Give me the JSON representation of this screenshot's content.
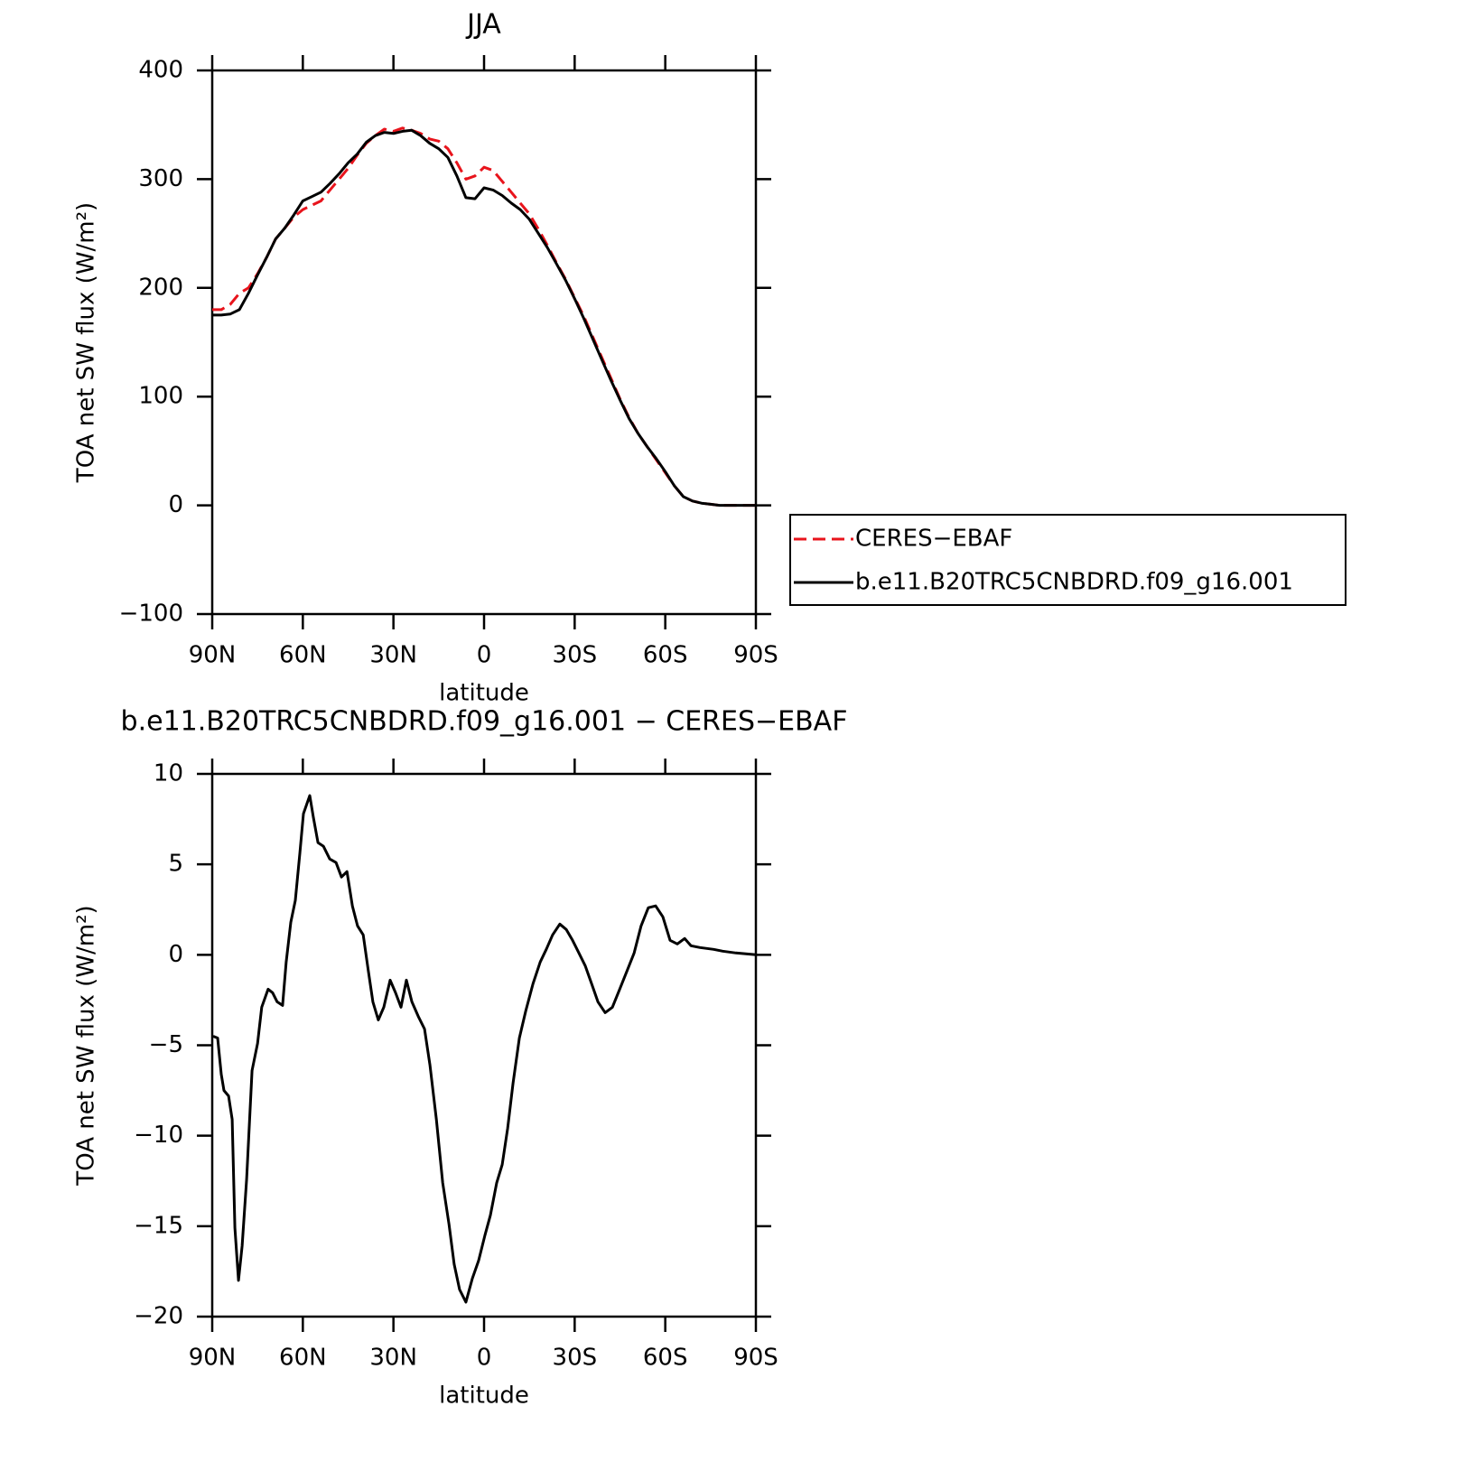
{
  "chart_data": [
    {
      "type": "line",
      "title": "JJA",
      "xlabel": "latitude",
      "ylabel": "TOA net SW flux (W/m²)",
      "x": [
        90,
        87,
        84,
        81,
        78,
        75,
        72,
        69,
        66,
        63,
        60,
        57,
        54,
        51,
        48,
        45,
        42,
        39,
        36,
        33,
        30,
        27,
        24,
        21,
        18,
        15,
        12,
        9,
        6,
        3,
        0,
        -3,
        -6,
        -9,
        -12,
        -15,
        -18,
        -21,
        -24,
        -27,
        -30,
        -33,
        -36,
        -39,
        -42,
        -45,
        -48,
        -51,
        -54,
        -57,
        -60,
        -63,
        -66,
        -69,
        -72,
        -75,
        -78,
        -81,
        -84,
        -87,
        -90
      ],
      "series": [
        {
          "name": "CERES−EBAF",
          "color": "#e8141c",
          "linestyle": "dashed",
          "values": [
            180,
            180,
            185,
            195,
            200,
            213,
            228,
            245,
            255,
            265,
            272,
            276,
            280,
            290,
            300,
            310,
            322,
            333,
            340,
            346,
            344,
            347,
            345,
            342,
            337,
            335,
            328,
            315,
            300,
            303,
            311,
            308,
            298,
            288,
            278,
            268,
            254,
            239,
            223,
            208,
            191,
            174,
            155,
            136,
            117,
            98,
            81,
            66,
            54,
            42,
            30,
            18,
            8,
            4,
            2,
            1,
            0,
            0,
            0,
            0,
            0
          ]
        },
        {
          "name": "b.e11.B20TRC5CNBDRD.f09_g16.001",
          "color": "#000000",
          "linestyle": "solid",
          "values": [
            175,
            175,
            176,
            180,
            195,
            212,
            228,
            245,
            255,
            267,
            280,
            284,
            288,
            296,
            305,
            315,
            323,
            334,
            340,
            343,
            342,
            344,
            345,
            340,
            333,
            328,
            320,
            303,
            283,
            282,
            292,
            290,
            285,
            278,
            272,
            263,
            250,
            237,
            222,
            207,
            190,
            172,
            153,
            134,
            115,
            97,
            80,
            66,
            54,
            43,
            31,
            18,
            8,
            4,
            2,
            1,
            0,
            0,
            0,
            0,
            0
          ]
        }
      ],
      "xlim": [
        90,
        -90
      ],
      "xticks": [
        {
          "value": 90,
          "label": "90N"
        },
        {
          "value": 60,
          "label": "60N"
        },
        {
          "value": 30,
          "label": "30N"
        },
        0,
        {
          "value": -30,
          "label": "30S"
        },
        {
          "value": -60,
          "label": "60S"
        },
        {
          "value": -90,
          "label": "90S"
        }
      ],
      "ylim": [
        -100,
        400
      ],
      "yticks": [
        {
          "value": -100,
          "label": "−100"
        },
        0,
        100,
        200,
        300,
        400
      ],
      "legend": "right"
    },
    {
      "type": "line",
      "title": "b.e11.B20TRC5CNBDRD.f09_g16.001 − CERES−EBAF",
      "xlabel": "latitude",
      "ylabel": "TOA net SW flux (W/m²)",
      "x": [
        89.7,
        88.2,
        87,
        86.1,
        84.6,
        83.4,
        82.5,
        81.3,
        80.1,
        78.6,
        76.8,
        75,
        73.6,
        71.5,
        70,
        68.5,
        66.7,
        65.5,
        64,
        62.5,
        61,
        59.8,
        57.7,
        56.5,
        55,
        53.2,
        51.1,
        49,
        47.2,
        45.4,
        43.6,
        41.9,
        40,
        38.3,
        36.8,
        35,
        33.2,
        31.1,
        29.3,
        27.5,
        25.7,
        23.9,
        21.8,
        19.7,
        17.9,
        15.8,
        13.7,
        11.6,
        9.9,
        8.1,
        6,
        3.9,
        1.8,
        -0.3,
        -2.1,
        -4.2,
        -6,
        -7.8,
        -9.6,
        -11.7,
        -13.8,
        -16.2,
        -18.6,
        -20.6,
        -22.7,
        -25.1,
        -27.2,
        -29.3,
        -31.4,
        -33.5,
        -35.6,
        -37.7,
        -40.1,
        -42.5,
        -44.9,
        -47.3,
        -49.7,
        -52,
        -54.4,
        -56.8,
        -59.2,
        -61.6,
        -64,
        -66.4,
        -68.5,
        -71.5,
        -76,
        -79,
        -83.4,
        -90
      ],
      "series": [
        {
          "color": "#000000",
          "linestyle": "solid",
          "values": [
            -4.5,
            -4.6,
            -6.6,
            -7.5,
            -7.8,
            -9.1,
            -15.1,
            -18,
            -16.1,
            -12.4,
            -6.4,
            -4.9,
            -2.9,
            -1.9,
            -2.1,
            -2.6,
            -2.8,
            -0.4,
            1.8,
            3,
            5.6,
            7.8,
            8.8,
            7.6,
            6.2,
            6,
            5.3,
            5.1,
            4.3,
            4.6,
            2.7,
            1.6,
            1.1,
            -0.9,
            -2.6,
            -3.6,
            -2.9,
            -1.4,
            -2.1,
            -2.9,
            -1.4,
            -2.6,
            -3.4,
            -4.1,
            -6.1,
            -9.1,
            -12.6,
            -14.9,
            -17.1,
            -18.5,
            -19.2,
            -17.9,
            -16.9,
            -15.5,
            -14.4,
            -12.6,
            -11.6,
            -9.6,
            -7.1,
            -4.6,
            -3.1,
            -1.6,
            -0.4,
            0.3,
            1.1,
            1.7,
            1.4,
            0.8,
            0.1,
            -0.6,
            -1.6,
            -2.6,
            -3.2,
            -2.9,
            -1.9,
            -0.9,
            0.1,
            1.6,
            2.6,
            2.7,
            2.1,
            0.8,
            0.6,
            0.9,
            0.5,
            0.4,
            0.3,
            0.2,
            0.1,
            0
          ]
        }
      ],
      "xlim": [
        90,
        -90
      ],
      "xticks": [
        {
          "value": 90,
          "label": "90N"
        },
        {
          "value": 60,
          "label": "60N"
        },
        {
          "value": 30,
          "label": "30N"
        },
        0,
        {
          "value": -30,
          "label": "30S"
        },
        {
          "value": -60,
          "label": "60S"
        },
        {
          "value": -90,
          "label": "90S"
        }
      ],
      "ylim": [
        -20,
        10
      ],
      "yticks": [
        {
          "value": -20,
          "label": "−20"
        },
        {
          "value": -15,
          "label": "−15"
        },
        {
          "value": -10,
          "label": "−10"
        },
        {
          "value": -5,
          "label": "−5"
        },
        0,
        5,
        10
      ]
    }
  ]
}
